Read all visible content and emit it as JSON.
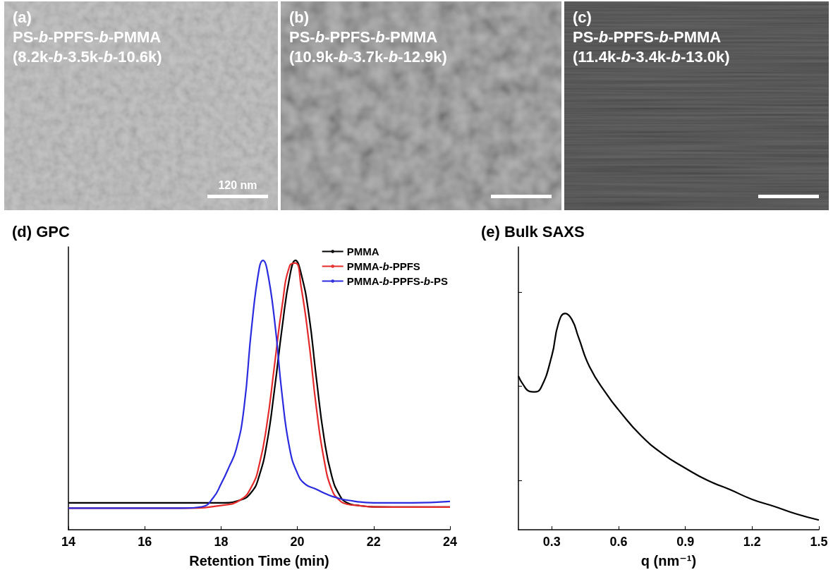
{
  "panels": [
    {
      "label": "(a)",
      "title": "PS-b-PPFS-b-PMMA",
      "subtitle": "(8.2k-b-3.5k-b-10.6k)",
      "scale_bar": "120 nm"
    },
    {
      "label": "(b)",
      "title": "PS-b-PPFS-b-PMMA",
      "subtitle": "(10.9k-b-3.7k-b-12.9k)"
    },
    {
      "label": "(c)",
      "title": "PS-b-PPFS-b-PMMA",
      "subtitle": "(11.4k-b-3.4k-b-13.0k)"
    }
  ],
  "chart_data": [
    {
      "type": "line",
      "title": "(d) GPC",
      "xlabel": "Retention Time (min)",
      "xlim": [
        14,
        24
      ],
      "xticks": [
        14,
        16,
        18,
        20,
        22,
        24
      ],
      "ylim": [
        0,
        1.05
      ],
      "tick_labels": "x",
      "grid": false,
      "legend": "upper right",
      "series": [
        {
          "name": "PMMA",
          "color": "#000000",
          "x": [
            14,
            16,
            17,
            18,
            18.5,
            18.8,
            19.0,
            19.2,
            19.4,
            19.6,
            19.8,
            19.95,
            20.1,
            20.3,
            20.5,
            20.7,
            20.9,
            21.1,
            21.3,
            21.6,
            22,
            23,
            24
          ],
          "values": [
            0.1,
            0.1,
            0.1,
            0.1,
            0.11,
            0.14,
            0.2,
            0.32,
            0.52,
            0.75,
            0.94,
            1.0,
            0.95,
            0.8,
            0.56,
            0.34,
            0.2,
            0.13,
            0.1,
            0.09,
            0.085,
            0.084,
            0.084
          ]
        },
        {
          "name": "PMMA-b-PPFS",
          "color": "#e52a2a",
          "x": [
            14,
            16,
            17,
            18,
            18.5,
            18.8,
            19.0,
            19.2,
            19.4,
            19.6,
            19.8,
            19.95,
            20.1,
            20.3,
            20.5,
            20.7,
            20.9,
            21.1,
            21.3,
            21.6,
            22,
            23,
            24
          ],
          "values": [
            0.08,
            0.08,
            0.08,
            0.09,
            0.11,
            0.16,
            0.24,
            0.39,
            0.61,
            0.83,
            0.98,
            0.99,
            0.9,
            0.7,
            0.45,
            0.26,
            0.15,
            0.11,
            0.095,
            0.09,
            0.085,
            0.084,
            0.084
          ]
        },
        {
          "name": "PMMA-b-PPFS-b-PS",
          "color": "#2b2bdf",
          "x": [
            14,
            16,
            17,
            17.5,
            17.8,
            18.0,
            18.2,
            18.4,
            18.6,
            18.8,
            19.0,
            19.1,
            19.2,
            19.4,
            19.6,
            19.8,
            20.0,
            20.2,
            20.5,
            20.8,
            21.0,
            21.3,
            22,
            23,
            24
          ],
          "values": [
            0.08,
            0.08,
            0.08,
            0.085,
            0.12,
            0.17,
            0.23,
            0.3,
            0.45,
            0.75,
            0.97,
            1.0,
            0.97,
            0.78,
            0.5,
            0.3,
            0.21,
            0.17,
            0.15,
            0.13,
            0.12,
            0.11,
            0.1,
            0.1,
            0.105
          ]
        }
      ]
    },
    {
      "type": "line",
      "title": "(e) Bulk SAXS",
      "xlabel": "q (nm⁻¹)",
      "log": "y",
      "xlim": [
        0.15,
        1.5
      ],
      "xticks": [
        0.3,
        0.6,
        0.9,
        1.2,
        1.5
      ],
      "ylim": [
        0.03,
        30
      ],
      "yticks": [
        0.1,
        1,
        10
      ],
      "tick_labels": "x",
      "grid": false,
      "series": [
        {
          "name": "SAXS",
          "color": "#000000",
          "x": [
            0.15,
            0.17,
            0.2,
            0.22,
            0.25,
            0.3,
            0.33,
            0.36,
            0.39,
            0.42,
            0.47,
            0.55,
            0.6,
            0.7,
            0.8,
            0.9,
            1.0,
            1.1,
            1.2,
            1.3,
            1.4,
            1.5
          ],
          "values": [
            1.28,
            1.05,
            0.88,
            0.87,
            0.95,
            2.1,
            4.65,
            5.9,
            5.1,
            3.3,
            1.6,
            0.8,
            0.56,
            0.3,
            0.19,
            0.135,
            0.1,
            0.08,
            0.063,
            0.053,
            0.044,
            0.038
          ]
        }
      ]
    }
  ]
}
